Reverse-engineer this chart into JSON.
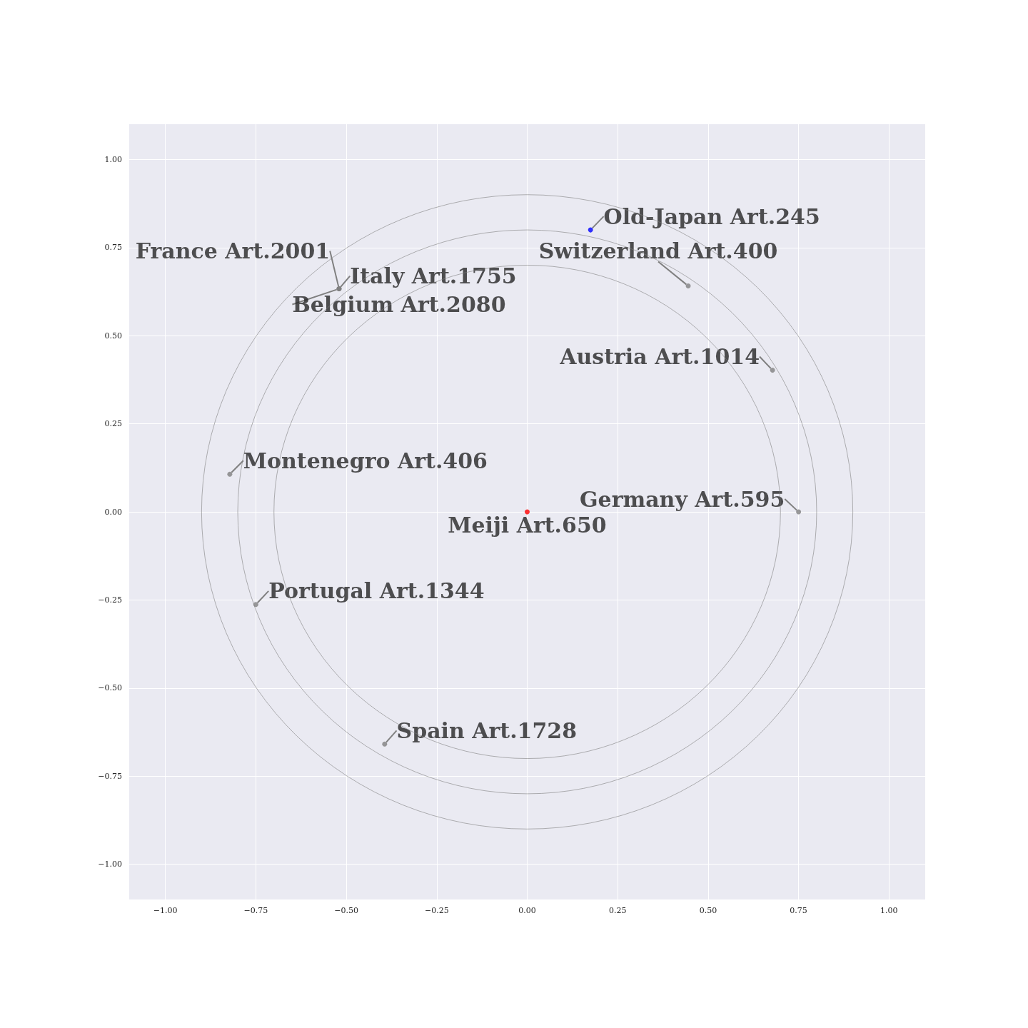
{
  "chart_data": {
    "type": "scatter",
    "xlim": [
      -1.1,
      1.1
    ],
    "ylim": [
      -1.1,
      1.1
    ],
    "xticks": [
      {
        "value": -1,
        "label": "−1.00"
      },
      {
        "value": -0.75,
        "label": "−0.75"
      },
      {
        "value": -0.5,
        "label": "−0.50"
      },
      {
        "value": -0.25,
        "label": "−0.25"
      },
      {
        "value": 0,
        "label": "0.00"
      },
      {
        "value": 0.25,
        "label": "0.25"
      },
      {
        "value": 0.5,
        "label": "0.50"
      },
      {
        "value": 0.75,
        "label": "0.75"
      },
      {
        "value": 1,
        "label": "1.00"
      }
    ],
    "yticks": [
      {
        "value": -1,
        "label": "−1.00"
      },
      {
        "value": -0.75,
        "label": "−0.75"
      },
      {
        "value": -0.5,
        "label": "−0.50"
      },
      {
        "value": -0.25,
        "label": "−0.25"
      },
      {
        "value": 0,
        "label": "0.00"
      },
      {
        "value": 0.25,
        "label": "0.25"
      },
      {
        "value": 0.5,
        "label": "0.50"
      },
      {
        "value": 0.75,
        "label": "0.75"
      },
      {
        "value": 1,
        "label": "1.00"
      }
    ],
    "grid": true,
    "marker": "circle",
    "series": [
      {
        "x": [
          0,
          0.175,
          0.445,
          -0.52,
          -0.52,
          -0.52,
          0.678,
          -0.822,
          0.75,
          -0.75,
          -0.394
        ],
        "values": [
          0,
          0.8,
          0.641,
          0.633,
          0.633,
          0.633,
          0.402,
          0.107,
          0,
          -0.263,
          -0.659
        ],
        "colors": [
          "#ff0000",
          "#0000ff",
          "#808080",
          "#808080",
          "#808080",
          "#808080",
          "#808080",
          "#808080",
          "#808080",
          "#808080",
          "#808080"
        ],
        "value_labels": [
          "Meiji Art.650",
          "Old-Japan Art.245",
          "Switzerland Art.400",
          "France Art.2001",
          "Italy Art.1755",
          "Belgium Art.2080",
          "Austria Art.1014",
          "Montenegro Art.406",
          "Germany Art.595",
          "Portugal Art.1344",
          "Spain Art.1728"
        ]
      }
    ]
  }
}
